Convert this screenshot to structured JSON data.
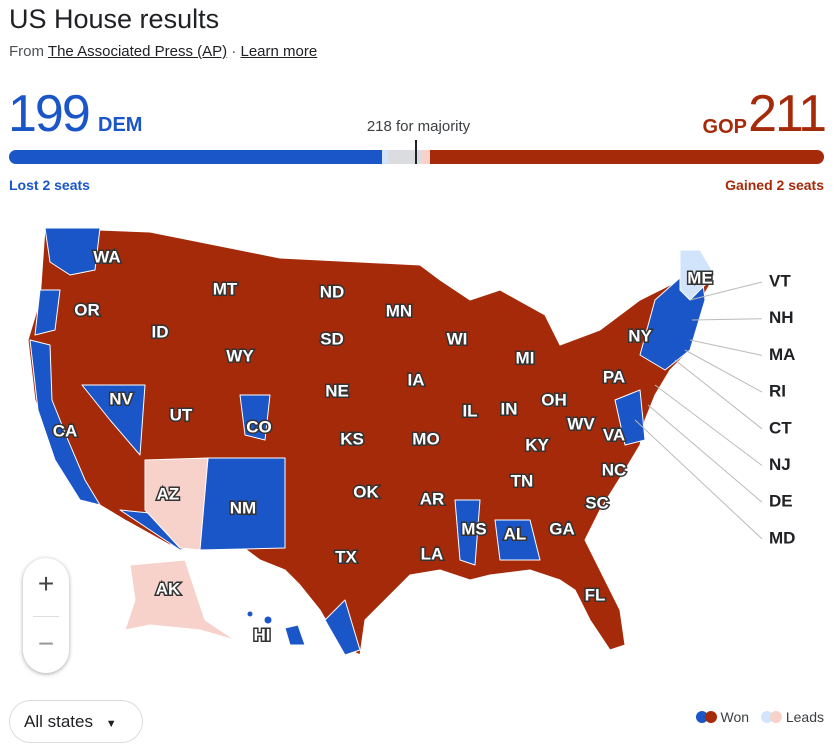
{
  "header": {
    "title": "US House results",
    "source_prefix": "From",
    "source": "The Associated Press (AP)",
    "separator": "·",
    "learn_more": "Learn more"
  },
  "results": {
    "dem": {
      "seats": 199,
      "party": "DEM",
      "change": "Lost 2 seats"
    },
    "majority": "218 for majority",
    "gop": {
      "party": "GOP",
      "seats": 211,
      "change": "Gained 2 seats"
    }
  },
  "map": {
    "states": [
      "WA",
      "OR",
      "CA",
      "NV",
      "ID",
      "MT",
      "WY",
      "UT",
      "CO",
      "AZ",
      "NM",
      "ND",
      "SD",
      "NE",
      "KS",
      "OK",
      "TX",
      "MN",
      "IA",
      "MO",
      "AR",
      "LA",
      "WI",
      "IL",
      "MS",
      "MI",
      "IN",
      "KY",
      "TN",
      "AL",
      "OH",
      "WV",
      "VA",
      "NC",
      "SC",
      "GA",
      "FL",
      "PA",
      "NY",
      "ME",
      "AK",
      "HI"
    ],
    "callouts": [
      "VT",
      "NH",
      "MA",
      "RI",
      "CT",
      "NJ",
      "DE",
      "MD"
    ]
  },
  "zoom": {
    "in": "+",
    "out": "−"
  },
  "filter": {
    "label": "All states"
  },
  "legend": {
    "won": "Won",
    "leads": "Leads"
  }
}
